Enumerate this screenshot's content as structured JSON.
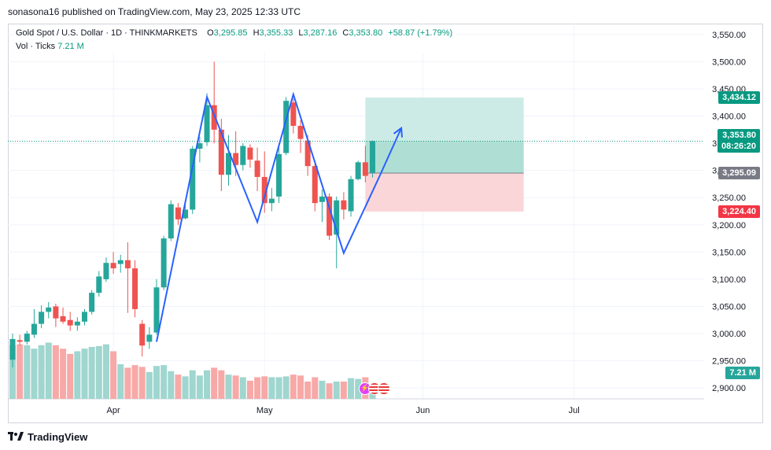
{
  "header": {
    "publish_line": "sonasona16 published on TradingView.com, May 23, 2025 12:33 UTC"
  },
  "legend": {
    "symbol": "Gold Spot / U.S. Dollar · 1D · THINKMARKETS",
    "o_label": "O",
    "o_value": "3,295.85",
    "h_label": "H",
    "h_value": "3,355.33",
    "l_label": "L",
    "l_value": "3,287.16",
    "c_label": "C",
    "c_value": "3,353.80",
    "change": "+58.87 (+1.79%)",
    "vol_label": "Vol · Ticks",
    "vol_value": "7.21 M"
  },
  "price_labels": {
    "target": "3,434.12",
    "current": "3,353.80",
    "countdown": "08:26:20",
    "entry": "3,295.09",
    "stop": "3,224.40",
    "volume": "7.21 M"
  },
  "footer": {
    "brand": "TradingView"
  },
  "colors": {
    "up": "#26a69a",
    "down": "#ef5350",
    "vol_up": "#9fd6cf",
    "vol_down": "#f7a9a7",
    "pattern_line": "#2962ff",
    "target_zone": "#cdebe6",
    "stop_zone": "#fad6d9",
    "target_tag": "#089981",
    "entry_tag": "#787b86",
    "stop_tag": "#f23645"
  },
  "chart_data": {
    "type": "candlestick",
    "title": "Gold Spot / U.S. Dollar · 1D · THINKMARKETS",
    "y_axis": {
      "ticks": [
        2900,
        2950,
        3000,
        3050,
        3100,
        3150,
        3200,
        3250,
        3300,
        3350,
        3400,
        3450,
        3500,
        3550
      ],
      "range": [
        2880,
        3570
      ],
      "position": "right"
    },
    "x_axis": {
      "labels": [
        {
          "label": "Apr",
          "day": 14
        },
        {
          "label": "May",
          "day": 35
        },
        {
          "label": "Jun",
          "day": 57
        },
        {
          "label": "Jul",
          "day": 78
        }
      ]
    },
    "candles": [
      {
        "o": 2952,
        "h": 3000,
        "l": 2938,
        "c": 2990,
        "v": 0.62
      },
      {
        "o": 2988,
        "h": 2998,
        "l": 2978,
        "c": 2985,
        "v": 0.63
      },
      {
        "o": 2985,
        "h": 3005,
        "l": 2980,
        "c": 3000,
        "v": 0.62
      },
      {
        "o": 2998,
        "h": 3045,
        "l": 2992,
        "c": 3018,
        "v": 0.58
      },
      {
        "o": 3018,
        "h": 3052,
        "l": 3010,
        "c": 3040,
        "v": 0.62
      },
      {
        "o": 3040,
        "h": 3058,
        "l": 3028,
        "c": 3048,
        "v": 0.65
      },
      {
        "o": 3050,
        "h": 3055,
        "l": 3012,
        "c": 3028,
        "v": 0.62
      },
      {
        "o": 3032,
        "h": 3048,
        "l": 3018,
        "c": 3022,
        "v": 0.58
      },
      {
        "o": 3025,
        "h": 3040,
        "l": 3005,
        "c": 3015,
        "v": 0.52
      },
      {
        "o": 3015,
        "h": 3030,
        "l": 3005,
        "c": 3022,
        "v": 0.55
      },
      {
        "o": 3022,
        "h": 3045,
        "l": 3015,
        "c": 3040,
        "v": 0.58
      },
      {
        "o": 3040,
        "h": 3080,
        "l": 3035,
        "c": 3075,
        "v": 0.6
      },
      {
        "o": 3075,
        "h": 3115,
        "l": 3068,
        "c": 3105,
        "v": 0.61
      },
      {
        "o": 3100,
        "h": 3140,
        "l": 3095,
        "c": 3130,
        "v": 0.63
      },
      {
        "o": 3130,
        "h": 3150,
        "l": 3110,
        "c": 3120,
        "v": 0.55
      },
      {
        "o": 3128,
        "h": 3145,
        "l": 3112,
        "c": 3135,
        "v": 0.4
      },
      {
        "o": 3135,
        "h": 3168,
        "l": 3038,
        "c": 3120,
        "v": 0.36
      },
      {
        "o": 3120,
        "h": 3135,
        "l": 3030,
        "c": 3045,
        "v": 0.39
      },
      {
        "o": 3018,
        "h": 3025,
        "l": 2958,
        "c": 2978,
        "v": 0.37
      },
      {
        "o": 2985,
        "h": 3012,
        "l": 2972,
        "c": 2998,
        "v": 0.31
      },
      {
        "o": 3002,
        "h": 3100,
        "l": 2998,
        "c": 3085,
        "v": 0.38
      },
      {
        "o": 3085,
        "h": 3180,
        "l": 3080,
        "c": 3175,
        "v": 0.39
      },
      {
        "o": 3175,
        "h": 3245,
        "l": 3170,
        "c": 3238,
        "v": 0.32
      },
      {
        "o": 3232,
        "h": 3240,
        "l": 3200,
        "c": 3210,
        "v": 0.28
      },
      {
        "o": 3212,
        "h": 3245,
        "l": 3210,
        "c": 3228,
        "v": 0.26
      },
      {
        "o": 3228,
        "h": 3345,
        "l": 3220,
        "c": 3340,
        "v": 0.33
      },
      {
        "o": 3340,
        "h": 3362,
        "l": 3315,
        "c": 3350,
        "v": 0.27
      },
      {
        "o": 3352,
        "h": 3442,
        "l": 3345,
        "c": 3420,
        "v": 0.33
      },
      {
        "o": 3420,
        "h": 3500,
        "l": 3350,
        "c": 3375,
        "v": 0.36
      },
      {
        "o": 3375,
        "h": 3395,
        "l": 3262,
        "c": 3292,
        "v": 0.33
      },
      {
        "o": 3292,
        "h": 3365,
        "l": 3272,
        "c": 3332,
        "v": 0.28
      },
      {
        "o": 3332,
        "h": 3372,
        "l": 3290,
        "c": 3310,
        "v": 0.27
      },
      {
        "o": 3310,
        "h": 3350,
        "l": 3300,
        "c": 3345,
        "v": 0.25
      },
      {
        "o": 3342,
        "h": 3348,
        "l": 3305,
        "c": 3320,
        "v": 0.21
      },
      {
        "o": 3318,
        "h": 3342,
        "l": 3262,
        "c": 3288,
        "v": 0.25
      },
      {
        "o": 3288,
        "h": 3335,
        "l": 3222,
        "c": 3240,
        "v": 0.26
      },
      {
        "o": 3240,
        "h": 3268,
        "l": 3225,
        "c": 3248,
        "v": 0.25
      },
      {
        "o": 3252,
        "h": 3345,
        "l": 3240,
        "c": 3330,
        "v": 0.25
      },
      {
        "o": 3332,
        "h": 3435,
        "l": 3328,
        "c": 3428,
        "v": 0.26
      },
      {
        "o": 3425,
        "h": 3432,
        "l": 3368,
        "c": 3382,
        "v": 0.28
      },
      {
        "o": 3382,
        "h": 3392,
        "l": 3332,
        "c": 3358,
        "v": 0.27
      },
      {
        "o": 3355,
        "h": 3365,
        "l": 3290,
        "c": 3308,
        "v": 0.2
      },
      {
        "o": 3308,
        "h": 3318,
        "l": 3225,
        "c": 3240,
        "v": 0.25
      },
      {
        "o": 3242,
        "h": 3265,
        "l": 3205,
        "c": 3252,
        "v": 0.21
      },
      {
        "o": 3252,
        "h": 3258,
        "l": 3172,
        "c": 3180,
        "v": 0.18
      },
      {
        "o": 3182,
        "h": 3252,
        "l": 3120,
        "c": 3245,
        "v": 0.2
      },
      {
        "o": 3245,
        "h": 3260,
        "l": 3210,
        "c": 3228,
        "v": 0.2
      },
      {
        "o": 3225,
        "h": 3290,
        "l": 3215,
        "c": 3284,
        "v": 0.24
      },
      {
        "o": 3284,
        "h": 3318,
        "l": 3282,
        "c": 3315,
        "v": 0.23
      },
      {
        "o": 3315,
        "h": 3345,
        "l": 3278,
        "c": 3290,
        "v": 0.25
      },
      {
        "o": 3296,
        "h": 3355,
        "l": 3287,
        "c": 3354,
        "v": 0.12
      }
    ],
    "pattern": [
      {
        "day": 20,
        "price": 2985
      },
      {
        "day": 27,
        "price": 3435
      },
      {
        "day": 34,
        "price": 3205
      },
      {
        "day": 39,
        "price": 3440
      },
      {
        "day": 46,
        "price": 3148
      },
      {
        "day": 51,
        "price": 3290
      },
      {
        "day": 54,
        "price": 3378
      }
    ],
    "position": {
      "start_day": 49,
      "end_day": 71,
      "target": 3434.12,
      "entry": 3295.09,
      "stop": 3224.4,
      "current": 3353.8
    }
  }
}
